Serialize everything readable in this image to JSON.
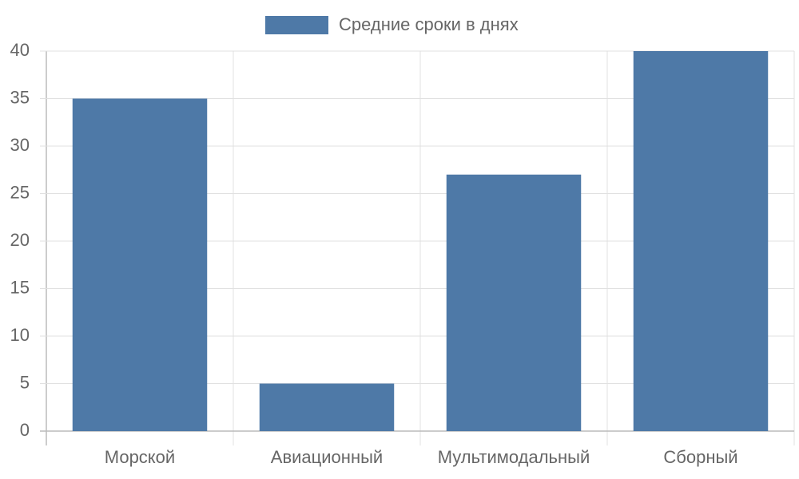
{
  "chart_data": {
    "type": "bar",
    "categories": [
      "Морской",
      "Авиационный",
      "Мультимодальный",
      "Сборный"
    ],
    "series": [
      {
        "name": "Средние сроки в днях",
        "color": "#4e79a7",
        "values": [
          35,
          5,
          27,
          40
        ]
      }
    ],
    "ylim": [
      0,
      40
    ],
    "yticks": [
      0,
      5,
      10,
      15,
      20,
      25,
      30,
      35,
      40
    ],
    "grid": true,
    "legend": "top"
  }
}
